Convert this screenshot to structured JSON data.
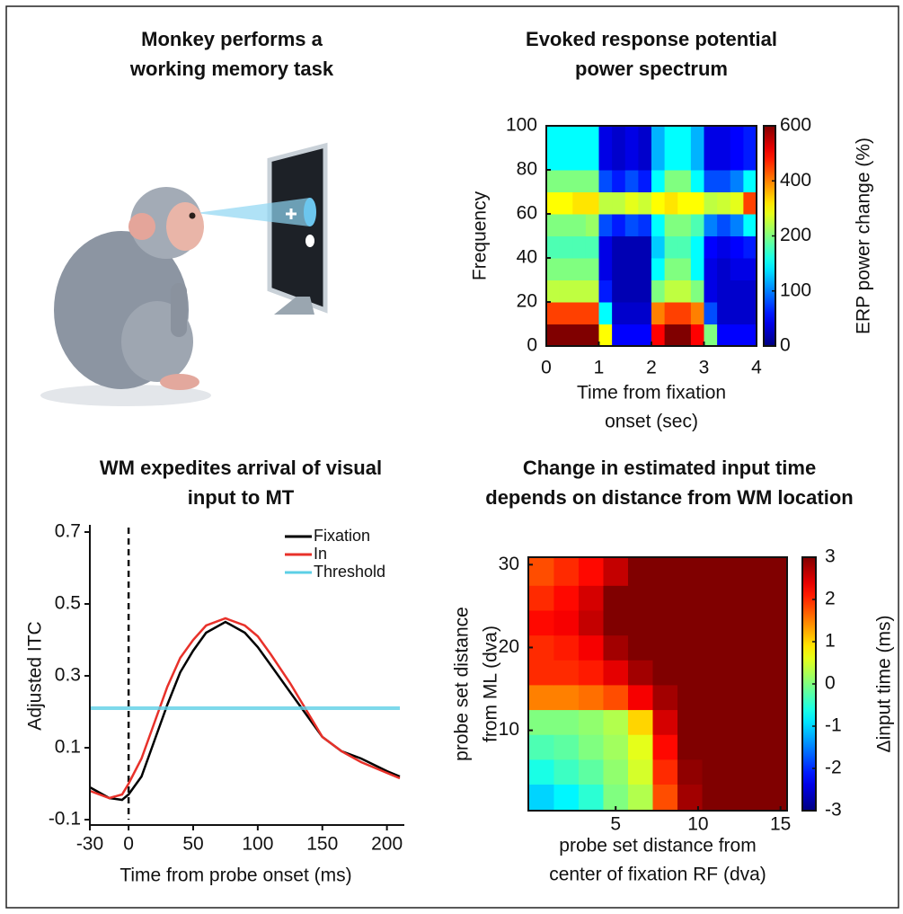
{
  "chart_data": [
    {
      "type": "illustration",
      "title": [
        "Monkey performs a",
        "working memory task"
      ]
    },
    {
      "type": "heatmap",
      "title": [
        "Evoked response potential",
        "power spectrum"
      ],
      "x_label": [
        "Time from fixation",
        "onset (sec)"
      ],
      "y_label": "Frequency",
      "colorbar_label": "ERP power change (%)",
      "colormap": "jet",
      "x": [
        0.125,
        0.375,
        0.625,
        0.875,
        1.125,
        1.375,
        1.625,
        1.875,
        2.125,
        2.375,
        2.625,
        2.875,
        3.125,
        3.375,
        3.625,
        3.875
      ],
      "y": [
        5,
        15,
        25,
        35,
        45,
        55,
        65,
        75,
        85,
        95
      ],
      "z": [
        [
          600,
          600,
          600,
          600,
          300,
          50,
          50,
          50,
          500,
          600,
          600,
          500,
          200,
          50,
          50,
          50
        ],
        [
          450,
          450,
          450,
          450,
          150,
          30,
          30,
          30,
          400,
          450,
          450,
          400,
          80,
          30,
          30,
          30
        ],
        [
          250,
          250,
          250,
          250,
          60,
          20,
          20,
          20,
          200,
          250,
          250,
          200,
          40,
          30,
          30,
          30
        ],
        [
          200,
          200,
          200,
          200,
          40,
          20,
          20,
          20,
          150,
          200,
          200,
          150,
          40,
          30,
          40,
          40
        ],
        [
          180,
          180,
          180,
          180,
          40,
          20,
          20,
          20,
          130,
          180,
          180,
          150,
          50,
          40,
          50,
          60
        ],
        [
          200,
          200,
          200,
          220,
          80,
          60,
          80,
          70,
          150,
          200,
          200,
          180,
          100,
          80,
          100,
          150
        ],
        [
          300,
          300,
          320,
          320,
          250,
          250,
          280,
          260,
          300,
          320,
          300,
          300,
          250,
          260,
          280,
          450
        ],
        [
          200,
          200,
          200,
          200,
          80,
          60,
          80,
          60,
          150,
          200,
          200,
          150,
          80,
          80,
          100,
          150
        ],
        [
          150,
          150,
          150,
          150,
          40,
          30,
          40,
          30,
          120,
          150,
          150,
          120,
          40,
          40,
          50,
          60
        ],
        [
          150,
          150,
          150,
          150,
          40,
          30,
          40,
          30,
          120,
          150,
          150,
          120,
          40,
          40,
          50,
          60
        ]
      ],
      "xlim": [
        0,
        4
      ],
      "xticks": [
        0,
        1,
        2,
        3,
        4
      ],
      "ylim": [
        0,
        100
      ],
      "yticks": [
        0,
        20,
        40,
        60,
        80,
        100
      ],
      "colorbar_ticks": [
        0,
        100,
        200,
        400,
        600
      ]
    },
    {
      "type": "line",
      "title": [
        "WM expedites arrival of visual",
        "input to MT"
      ],
      "x_label": "Time from probe onset (ms)",
      "y_label": "Adjusted ITC",
      "x": [
        -30,
        -15,
        -5,
        0,
        10,
        20,
        30,
        40,
        50,
        60,
        75,
        90,
        100,
        110,
        125,
        140,
        150,
        165,
        180,
        200,
        210
      ],
      "series": [
        {
          "name": "Fixation",
          "color": "#000000",
          "values": [
            -0.01,
            -0.04,
            -0.045,
            -0.03,
            0.02,
            0.12,
            0.22,
            0.31,
            0.37,
            0.42,
            0.45,
            0.42,
            0.38,
            0.33,
            0.255,
            0.18,
            0.13,
            0.09,
            0.07,
            0.035,
            0.02
          ]
        },
        {
          "name": "In",
          "color": "#e8312a",
          "values": [
            -0.02,
            -0.04,
            -0.03,
            0.0,
            0.07,
            0.17,
            0.27,
            0.35,
            0.4,
            0.44,
            0.46,
            0.44,
            0.41,
            0.36,
            0.28,
            0.19,
            0.13,
            0.09,
            0.06,
            0.03,
            0.015
          ]
        },
        {
          "name": "Threshold",
          "color": "#5ccfe6",
          "values": [
            0.21,
            0.21,
            0.21,
            0.21,
            0.21,
            0.21,
            0.21,
            0.21,
            0.21,
            0.21,
            0.21,
            0.21,
            0.21,
            0.21,
            0.21,
            0.21,
            0.21,
            0.21,
            0.21,
            0.21,
            0.21
          ]
        }
      ],
      "reference_line_x": 0,
      "xlim": [
        -30,
        210
      ],
      "xticks": [
        -30,
        0,
        50,
        100,
        150,
        200
      ],
      "ylim": [
        -0.1,
        0.7
      ],
      "yticks": [
        -0.1,
        0.1,
        0.3,
        0.5,
        0.7
      ],
      "legend": "upper-right"
    },
    {
      "type": "heatmap",
      "title": [
        "Change in estimated input time",
        "depends on distance from WM location"
      ],
      "x_label": [
        "probe set distance from",
        "center of fixation RF (dva)"
      ],
      "y_label": [
        "probe set distance",
        "from ML (dva)"
      ],
      "colorbar_label": "Δinput time (ms)",
      "colormap": "jet",
      "x": [
        0.5,
        2,
        3.5,
        5,
        6.5,
        8,
        9.5,
        11,
        12.5,
        14.5
      ],
      "y": [
        2,
        5,
        8,
        11,
        14,
        17,
        20,
        23,
        26,
        29
      ],
      "z": [
        [
          -1,
          -0.8,
          -0.5,
          0,
          0.3,
          1.8,
          2.8,
          3,
          3,
          3
        ],
        [
          -0.6,
          -0.4,
          -0.2,
          0.1,
          0.5,
          2,
          2.9,
          3,
          3,
          3
        ],
        [
          -0.3,
          -0.2,
          0,
          0.2,
          0.6,
          2.2,
          3,
          3,
          3,
          3
        ],
        [
          0,
          0,
          0.1,
          0.3,
          1,
          2.5,
          3,
          3,
          3,
          3
        ],
        [
          1.5,
          1.5,
          1.6,
          1.8,
          2.3,
          2.8,
          3,
          3,
          3,
          3
        ],
        [
          2,
          2,
          2.1,
          2.4,
          2.8,
          3,
          3,
          3,
          3,
          3
        ],
        [
          2,
          2.1,
          2.3,
          2.8,
          3,
          3,
          3,
          3,
          3,
          3
        ],
        [
          2.2,
          2.3,
          2.6,
          3,
          3,
          3,
          3,
          3,
          3,
          3
        ],
        [
          2,
          2.2,
          2.5,
          3,
          3,
          3,
          3,
          3,
          3,
          3
        ],
        [
          1.8,
          2,
          2.2,
          2.6,
          3,
          3,
          3,
          3,
          3,
          3
        ]
      ],
      "xlim": [
        -0.3,
        15.4
      ],
      "xticks": [
        5,
        10,
        15
      ],
      "ylim": [
        0.3,
        30.9
      ],
      "yticks": [
        10,
        20,
        30
      ],
      "colorbar_ticks": [
        -3,
        -2,
        -1,
        0,
        1,
        2,
        3
      ]
    }
  ]
}
